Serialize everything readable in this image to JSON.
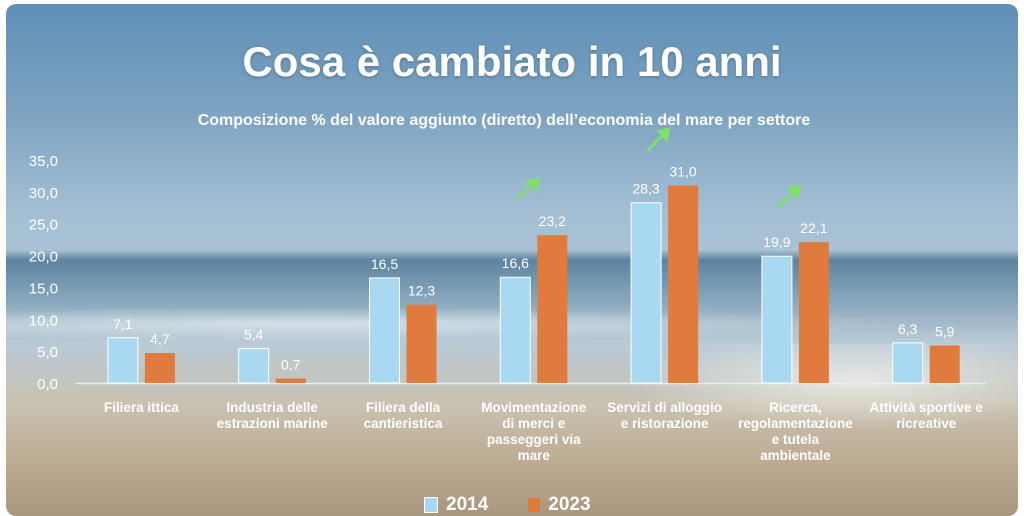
{
  "chart_data": {
    "type": "bar",
    "title": "Cosa è cambiato in 10 anni",
    "subtitle": "Composizione % del valore aggiunto (diretto) dell’economia del mare per settore",
    "categories": [
      [
        "Filiera ittica"
      ],
      [
        "Industria delle",
        "estrazioni marine"
      ],
      [
        "Filiera della",
        "cantieristica"
      ],
      [
        "Movimentazione",
        "di merci e",
        "passeggeri via",
        "mare"
      ],
      [
        "Servizi di alloggio",
        "e ristorazione"
      ],
      [
        "Ricerca,",
        "regolamentazione",
        "e tutela",
        "ambientale"
      ],
      [
        "Attività sportive e",
        "ricreative"
      ]
    ],
    "series": [
      {
        "name": "2014",
        "color": "#a9d8f2",
        "values": [
          7.1,
          5.4,
          16.5,
          16.6,
          28.3,
          19.9,
          6.3
        ],
        "labels": [
          "7,1",
          "5,4",
          "16,5",
          "16,6",
          "28,3",
          "19,9",
          "6,3"
        ]
      },
      {
        "name": "2023",
        "color": "#e07a3d",
        "values": [
          4.7,
          0.7,
          12.3,
          23.2,
          31.0,
          22.1,
          5.9
        ],
        "labels": [
          "4,7",
          "0,7",
          "12,3",
          "23,2",
          "31,0",
          "22,1",
          "5,9"
        ]
      }
    ],
    "yticks": [
      "0,0",
      "5,0",
      "10,0",
      "15,0",
      "20,0",
      "25,0",
      "30,0",
      "35,0"
    ],
    "ylim": [
      0,
      35
    ],
    "arrow_icon": "up-right-arrow-icon",
    "arrow_color": "#7fe06a",
    "arrow_categories": [
      3,
      4,
      5
    ],
    "legend_position": "bottom",
    "grid": false
  }
}
